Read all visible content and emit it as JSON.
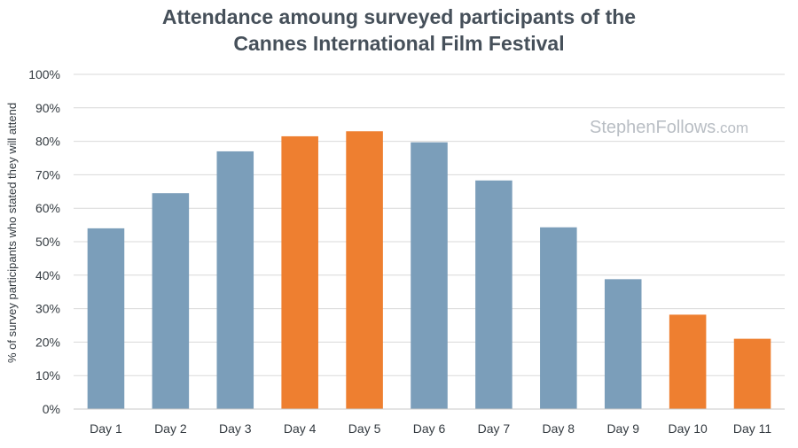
{
  "chart_data": {
    "type": "bar",
    "title": "Attendance amoung surveyed participants of the Cannes International Film Festival",
    "title_lines": [
      "Attendance amoung surveyed participants of the",
      "Cannes International Film Festival"
    ],
    "xlabel": "",
    "ylabel": "% of survey participants who stated they will attend",
    "ylim": [
      0,
      100
    ],
    "yticks": [
      0,
      10,
      20,
      30,
      40,
      50,
      60,
      70,
      80,
      90,
      100
    ],
    "ytick_suffix": "%",
    "grid": true,
    "categories": [
      "Day 1",
      "Day 2",
      "Day 3",
      "Day 4",
      "Day 5",
      "Day 6",
      "Day 7",
      "Day 8",
      "Day 9",
      "Day 10",
      "Day 11"
    ],
    "values": [
      54,
      64.5,
      77,
      81.5,
      83,
      79.7,
      68.3,
      54.3,
      38.8,
      28.2,
      21
    ],
    "highlighted": [
      false,
      false,
      false,
      true,
      true,
      false,
      false,
      false,
      false,
      true,
      true
    ],
    "colors": {
      "normal": "#7b9eba",
      "highlight": "#ee7f30",
      "grid": "#d9d9d9",
      "axis": "#c8c8c8"
    },
    "watermark": {
      "main": "StephenFollows",
      "suffix": ".com"
    }
  }
}
